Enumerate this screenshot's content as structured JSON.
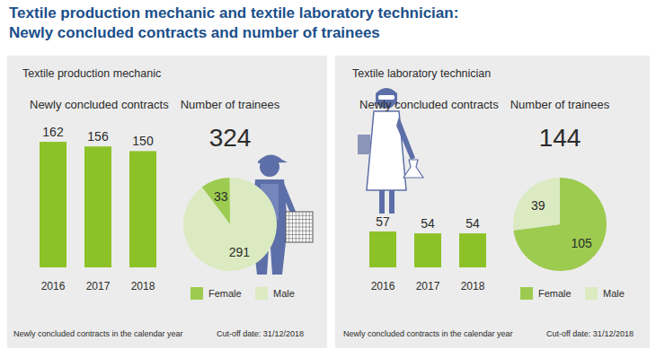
{
  "title": [
    "Textile production mechanic and textile laboratory technician:",
    "Newly concluded contracts and number of trainees"
  ],
  "chart_data": [
    {
      "type": "bar",
      "subtitle": "Textile production mechanic",
      "title": "Newly concluded contracts",
      "categories": [
        "2016",
        "2017",
        "2018"
      ],
      "values": [
        162,
        156,
        150
      ],
      "color": "#8cc227",
      "ylim": [
        0,
        191
      ],
      "data_labels": true,
      "tick_labels": "x",
      "note": "Newly concluded contracts in the calendar year"
    },
    {
      "type": "pie",
      "title": "Number of trainees",
      "total": 324,
      "categories": [
        "Female",
        "Male"
      ],
      "values": [
        33,
        291
      ],
      "colors": [
        "#9ccb4f",
        "#dbeac1"
      ],
      "data_labels": true,
      "legend": "bottom",
      "note": "Cut-off date: 31/12/2018"
    },
    {
      "type": "bar",
      "subtitle": "Textile laboratory technician",
      "title": "Newly concluded contracts",
      "categories": [
        "2016",
        "2017",
        "2018"
      ],
      "values": [
        57,
        54,
        54
      ],
      "color": "#8cc227",
      "ylim": [
        0,
        235
      ],
      "data_labels": true,
      "tick_labels": "x",
      "note": "Newly concluded contracts in the calendar year"
    },
    {
      "type": "pie",
      "title": "Number of trainees",
      "total": 144,
      "categories": [
        "Female",
        "Male"
      ],
      "values": [
        105,
        39
      ],
      "colors": [
        "#9ccb4f",
        "#dbeac1"
      ],
      "data_labels": true,
      "legend": "bottom",
      "note": "Cut-off date: 31/12/2018"
    }
  ]
}
